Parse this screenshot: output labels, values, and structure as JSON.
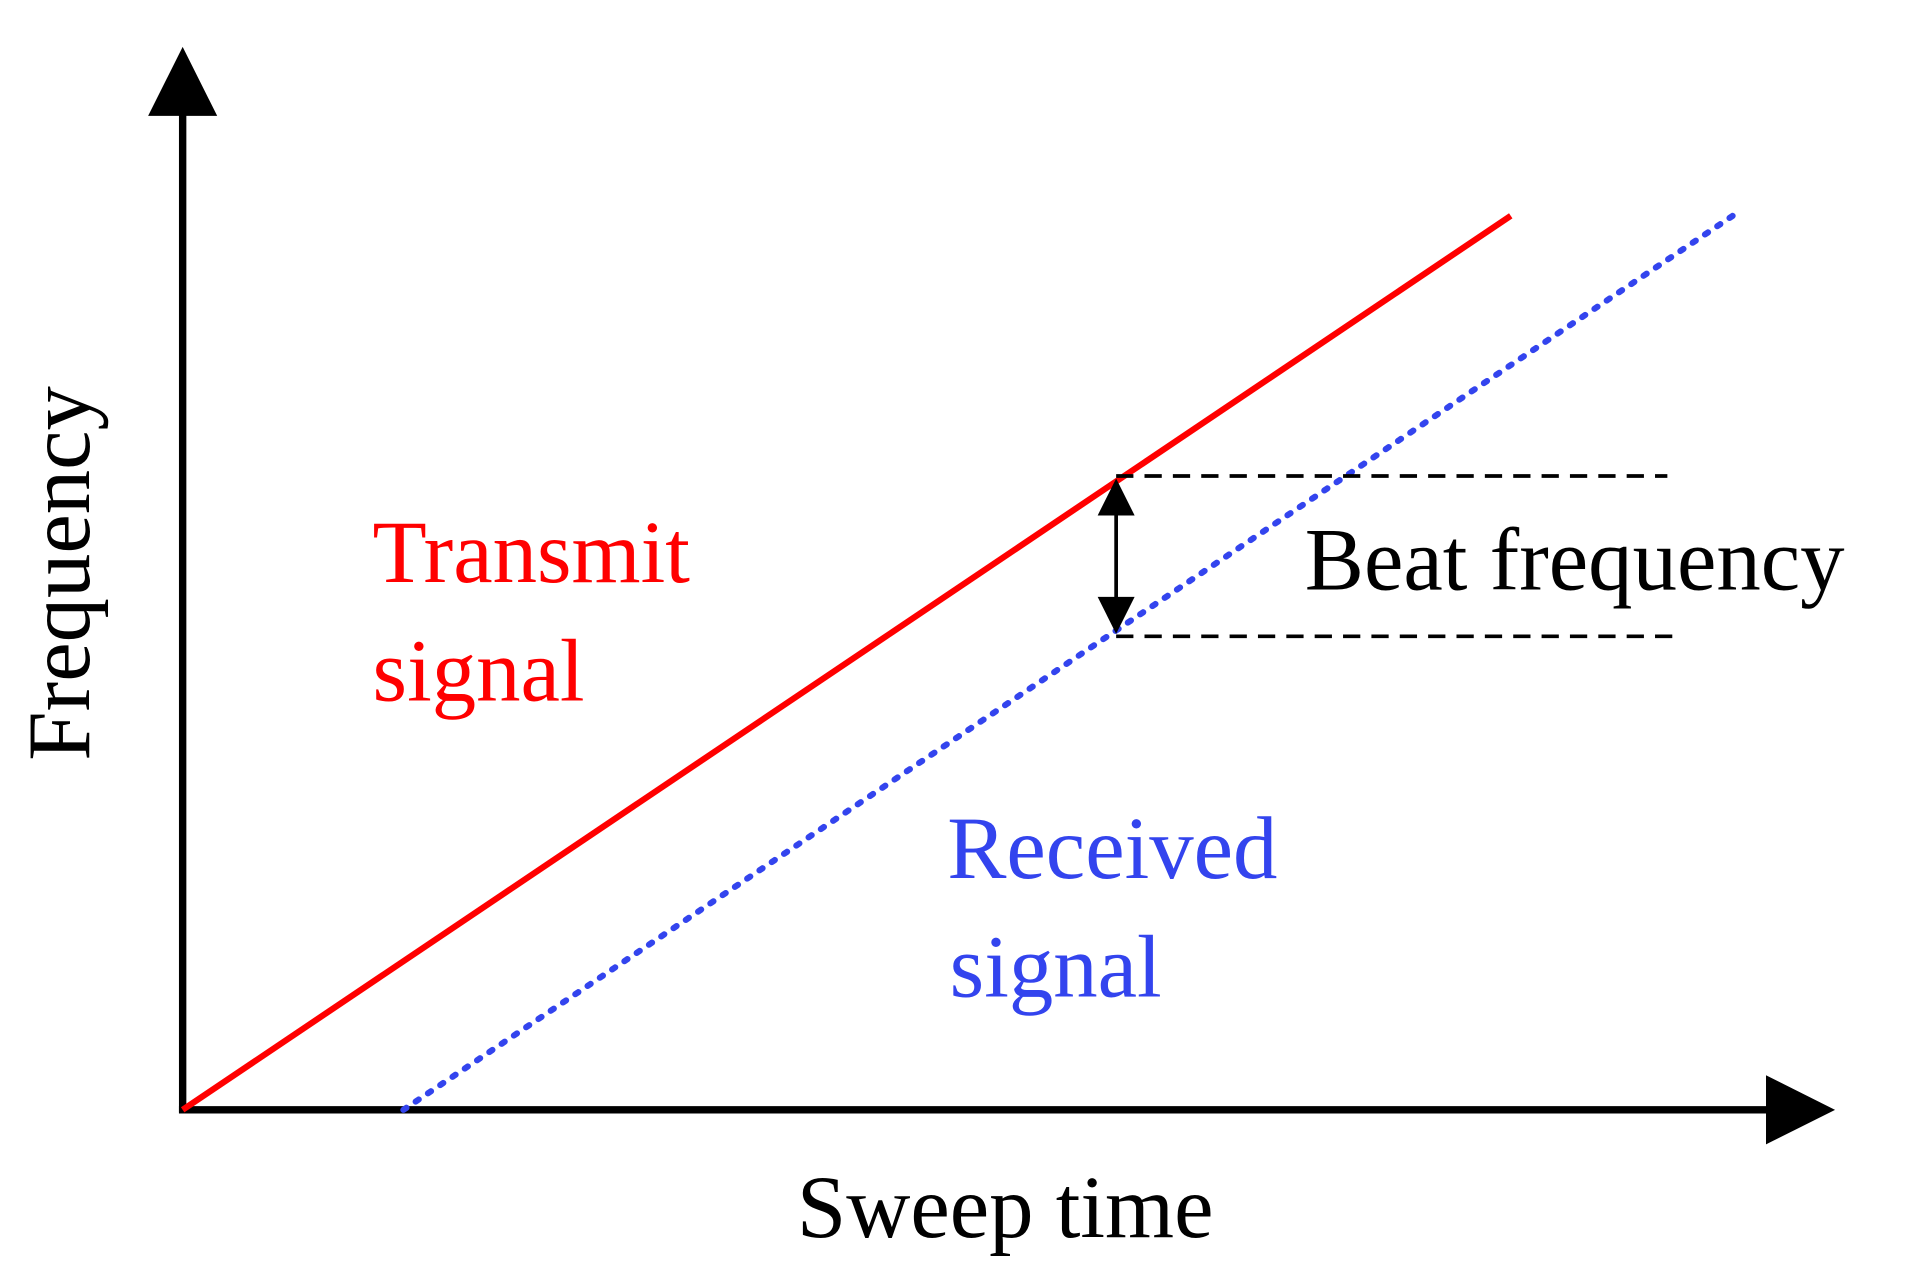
{
  "axes": {
    "y_label": "Frequency",
    "x_label": "Sweep time"
  },
  "signals": {
    "transmit": {
      "lines": [
        "Transmit",
        "signal"
      ]
    },
    "received": {
      "lines": [
        "Received",
        "signal"
      ]
    }
  },
  "beat": {
    "label": "Beat frequency"
  }
}
